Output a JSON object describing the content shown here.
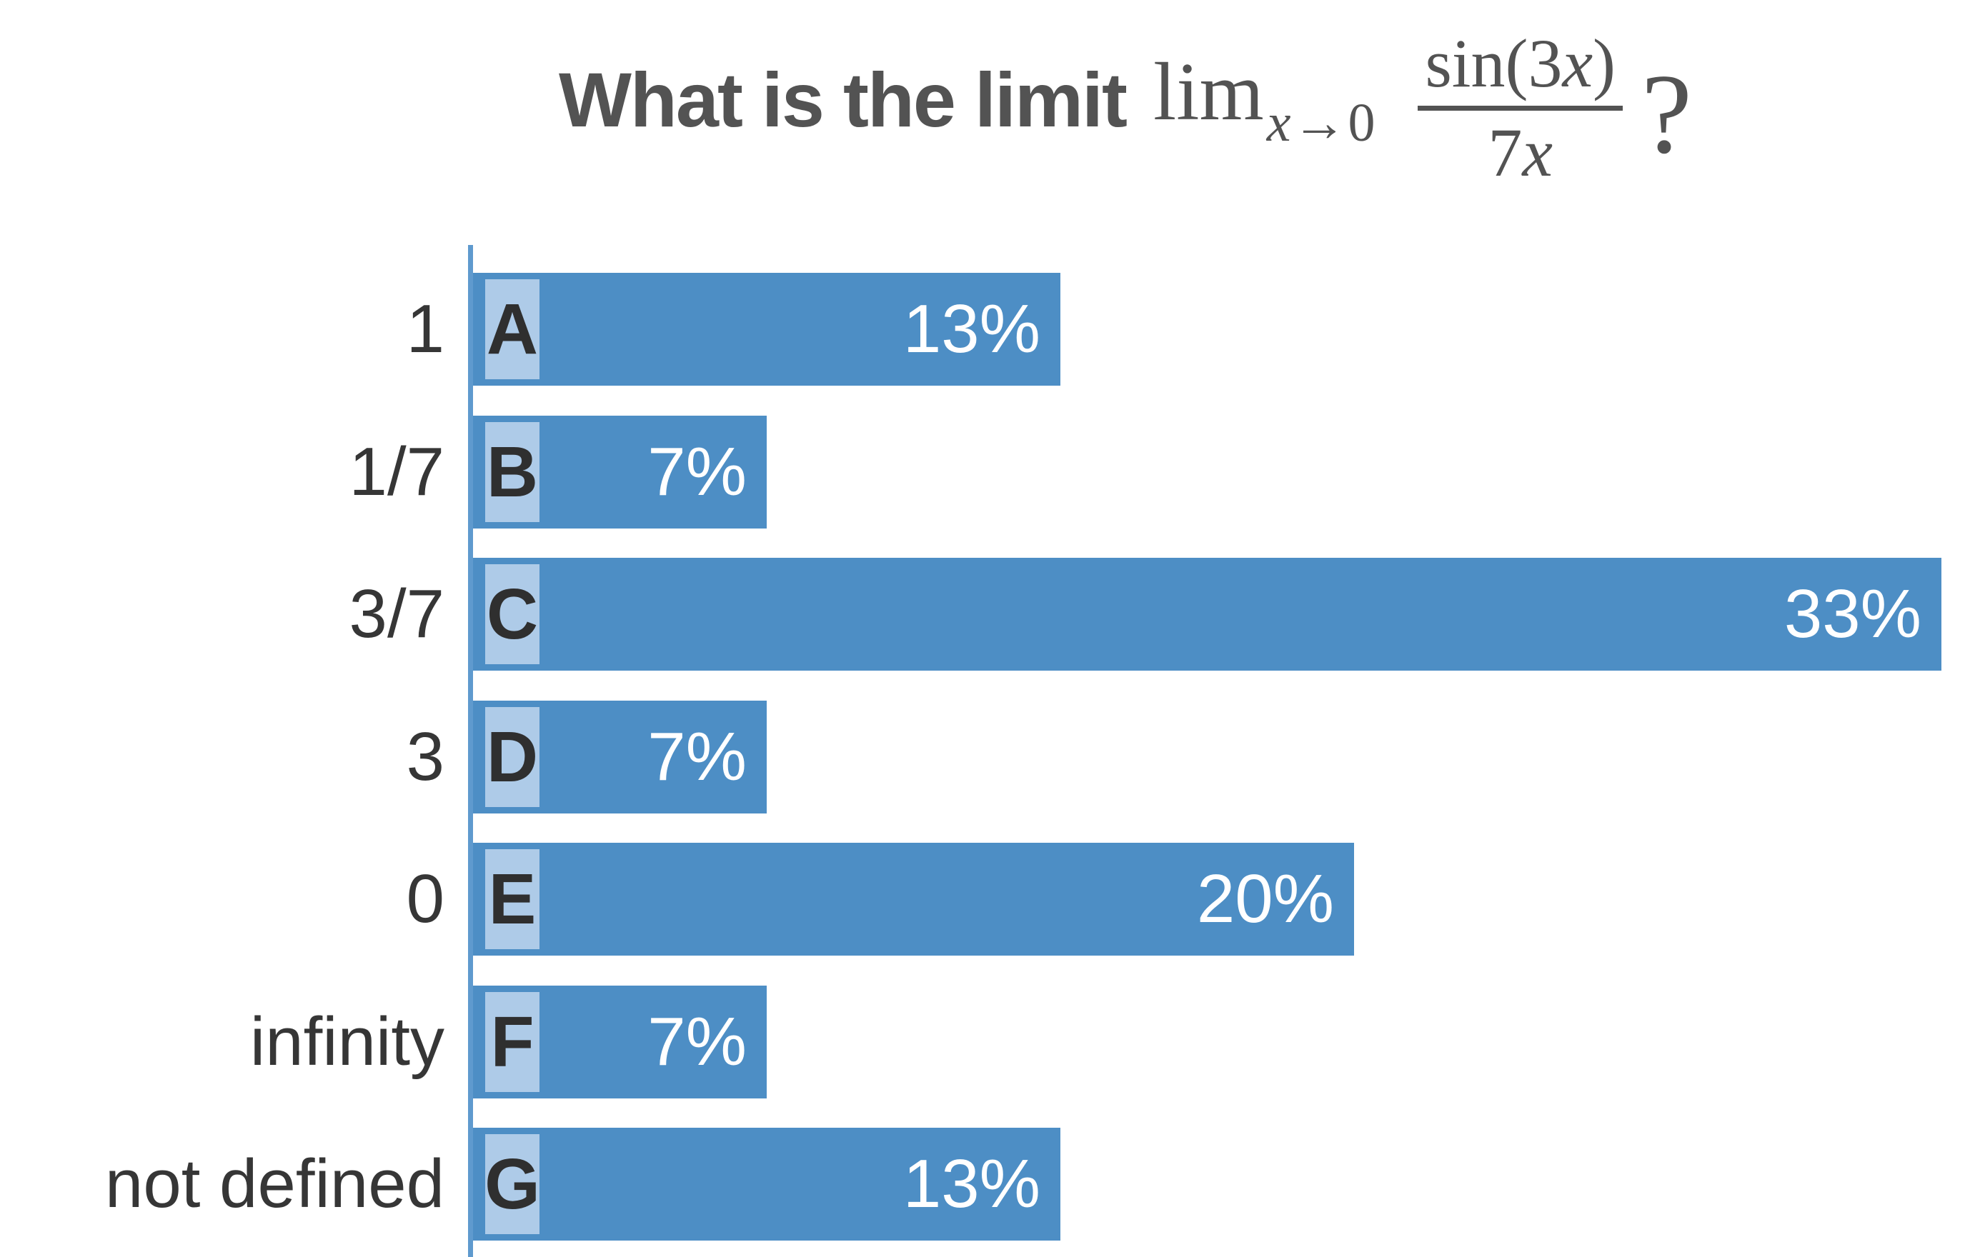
{
  "question": {
    "prefix": "What is the limit",
    "math": {
      "operator": "lim",
      "subscript": {
        "var": "x",
        "arrow": "→",
        "to": "0"
      },
      "fraction": {
        "numerator_pre": "sin(3",
        "numerator_var": "x",
        "numerator_post": ")",
        "denominator_pre": "7",
        "denominator_var": "x"
      }
    },
    "suffix": "?"
  },
  "chart_data": {
    "type": "bar",
    "orientation": "horizontal",
    "title": "What is the limit lim_{x→0} sin(3x)/(7x) ?",
    "categories": [
      "1",
      "1/7",
      "3/7",
      "3",
      "0",
      "infinity",
      "not defined"
    ],
    "choice_letters": [
      "A",
      "B",
      "C",
      "D",
      "E",
      "F",
      "G"
    ],
    "values": [
      13,
      7,
      33,
      7,
      20,
      7,
      13
    ],
    "value_labels": [
      "13%",
      "7%",
      "33%",
      "7%",
      "20%",
      "7%",
      "13%"
    ],
    "relative_widths": [
      2,
      1,
      5,
      1,
      3,
      1,
      2
    ],
    "xlim": [
      0,
      33.33
    ],
    "legend": "none",
    "grid": "off",
    "colors": {
      "bar": "#4d8ec5",
      "letter_chip": "#aecbe8",
      "axis_line": "#5f9ace",
      "category_label": "#363636",
      "value_label": "#ffffff",
      "title": "#535353"
    }
  }
}
